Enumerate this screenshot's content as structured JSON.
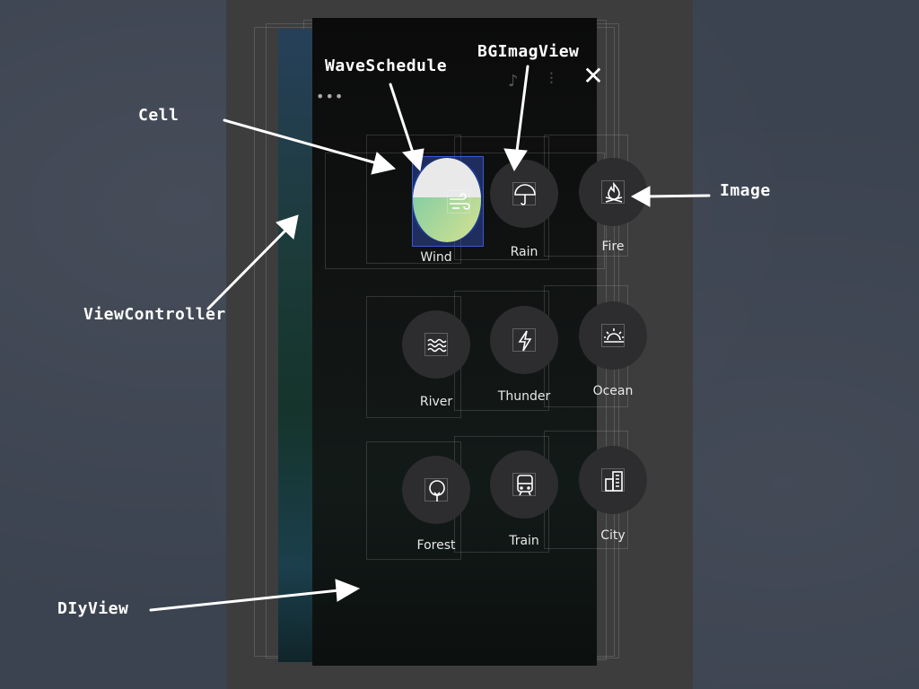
{
  "annotations": {
    "cell": "Cell",
    "wave_schedule": "WaveSchedule",
    "bg_image_view": "BGImagView",
    "image": "Image",
    "view_controller": "ViewController",
    "diy_view": "DIyView"
  },
  "header": {
    "dots": "•••",
    "close": "✕"
  },
  "sounds": [
    {
      "label": "Wind",
      "icon": "wind-icon",
      "active": true
    },
    {
      "label": "Rain",
      "icon": "umbrella-icon",
      "active": false
    },
    {
      "label": "Fire",
      "icon": "fire-icon",
      "active": false
    },
    {
      "label": "River",
      "icon": "waves-icon",
      "active": false
    },
    {
      "label": "Thunder",
      "icon": "lightning-icon",
      "active": false
    },
    {
      "label": "Ocean",
      "icon": "sunset-icon",
      "active": false
    },
    {
      "label": "Forest",
      "icon": "tree-icon",
      "active": false
    },
    {
      "label": "Train",
      "icon": "train-icon",
      "active": false
    },
    {
      "label": "City",
      "icon": "building-icon",
      "active": false
    }
  ],
  "colors": {
    "wave_top": "#e9e9e9",
    "wave_bottom_start": "#6fc8a9",
    "wave_bottom_end": "#d6e290",
    "selection": "#3b58d0"
  }
}
